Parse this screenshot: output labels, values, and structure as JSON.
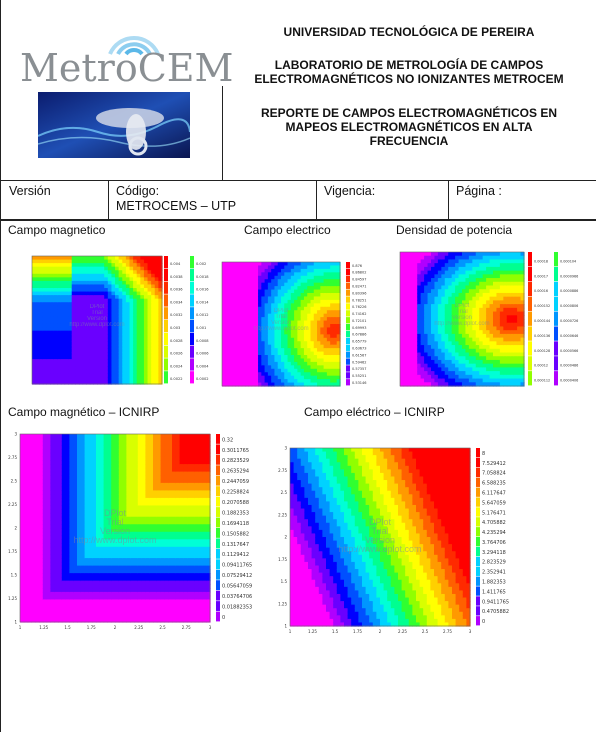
{
  "header": {
    "university": "UNIVERSIDAD TECNOLÓGICA DE PEREIRA",
    "lab_line1": "LABORATORIO DE METROLOGÍA DE CAMPOS",
    "lab_line2": "ELECTROMAGNÉTICOS NO IONIZANTES METROCEM",
    "report_line1": "REPORTE DE CAMPOS ELECTROMAGNÉTICOS EN",
    "report_line2": "MAPEOS ELECTROMAGNÉTICOS EN ALTA",
    "report_line3": "FRECUENCIA",
    "logo_text": "MetroCEM"
  },
  "meta": {
    "version_label": "Versión",
    "code_label": "Código:",
    "code_value": "METROCEMS – UTP",
    "validity_label": "Vigencia:",
    "page_label": "Página :"
  },
  "sections": {
    "magnetic": "Campo magnetico",
    "electric": "Campo electrico",
    "power": "Densidad de potencia",
    "magnetic_icnirp": "Campo magnético – ICNIRP",
    "electric_icnirp": "Campo eléctrico – ICNIRP"
  },
  "watermark": {
    "line1": "DPlot",
    "line2": "Trial",
    "line3": "Version",
    "url": "http://www.dplot.com"
  },
  "legends": {
    "magnetic_icnirp": [
      "0.32",
      "0.3011765",
      "0.2823529",
      "0.2635294",
      "0.2447059",
      "0.2258824",
      "0.2070588",
      "0.1882353",
      "0.1694118",
      "0.1505882",
      "0.1317647",
      "0.1129412",
      "0.09411765",
      "0.07529412",
      "0.05647059",
      "0.03764706",
      "0.01882353",
      "0"
    ],
    "electric_icnirp": [
      "8",
      "7.529412",
      "7.058824",
      "6.588235",
      "6.117647",
      "5.647059",
      "5.176471",
      "4.705882",
      "4.235294",
      "3.764706",
      "3.294118",
      "2.823529",
      "2.352941",
      "1.882353",
      "1.411765",
      "0.9411765",
      "0.4705882",
      "0"
    ],
    "magnetic": [
      "0.004",
      "0.0038",
      "0.0036",
      "0.0034",
      "0.0032",
      "0.003",
      "0.0028",
      "0.0026",
      "0.0024",
      "0.0022",
      "0.002",
      "0.0018",
      "0.0016",
      "0.0014",
      "0.0012",
      "0.001",
      "0.0008",
      "0.0006",
      "0.0004",
      "0.0002"
    ],
    "electric": [
      "0.876",
      "0.86802",
      "0.84597",
      "0.82471",
      "0.80396",
      "0.78251",
      "0.76226",
      "0.74162",
      "0.72101",
      "0.69993",
      "0.67886",
      "0.65779",
      "0.63673",
      "0.61567",
      "0.59462",
      "0.57357",
      "0.55251",
      "0.53146"
    ],
    "power": [
      "0.00018",
      "0.00017",
      "0.00016",
      "0.000152",
      "0.000144",
      "0.000136",
      "0.000128",
      "0.00012",
      "0.000112",
      "0.000104",
      "0.0000966",
      "0.0000886",
      "0.0000806",
      "0.0000726",
      "0.0000646",
      "0.0000566",
      "0.0000486",
      "0.0000406"
    ]
  },
  "ticks": {
    "magnetic_icnirp_x": [
      "1",
      "1.25",
      "1.5",
      "1.75",
      "2",
      "2.25",
      "2.5",
      "2.75",
      "3"
    ],
    "magnetic_icnirp_y": [
      "3",
      "2.75",
      "2.5",
      "2.25",
      "2",
      "1.75",
      "1.5",
      "1.25",
      "1"
    ],
    "electric_icnirp_x": [
      "1",
      "1.25",
      "1.5",
      "1.75",
      "2",
      "2.25",
      "2.5",
      "2.75",
      "3"
    ],
    "electric_icnirp_y": [
      "3",
      "2.75",
      "2.5",
      "2.25",
      "2",
      "1.75",
      "1.5",
      "1.25",
      "1"
    ]
  },
  "colors": {
    "rule": "#222222",
    "logo_grey": "#8a8f93",
    "logo_wave": "#5bb8e8"
  }
}
